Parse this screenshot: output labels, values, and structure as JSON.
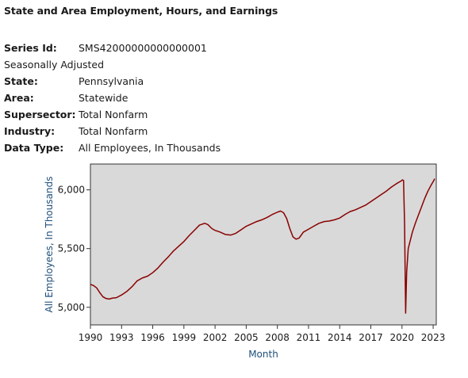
{
  "page": {
    "title": "State and Area Employment, Hours, and Earnings"
  },
  "meta": {
    "series_id_label": "Series Id:",
    "series_id_value": "SMS42000000000000001",
    "seasonal": "Seasonally Adjusted",
    "state_label": "State:",
    "state_value": "Pennsylvania",
    "area_label": "Area:",
    "area_value": "Statewide",
    "supersector_label": "Supersector:",
    "supersector_value": "Total Nonfarm",
    "industry_label": "Industry:",
    "industry_value": "Total Nonfarm",
    "datatype_label": "Data Type:",
    "datatype_value": "All Employees, In Thousands"
  },
  "chart_data": {
    "type": "line",
    "xlabel": "Month",
    "ylabel": "All Employees, In Thousands",
    "xlim": [
      1990,
      2023.3
    ],
    "ylim": [
      4850,
      6220
    ],
    "x_ticks": [
      1990,
      1993,
      1996,
      1999,
      2002,
      2005,
      2008,
      2011,
      2014,
      2017,
      2020,
      2023
    ],
    "x_tick_labels": [
      "1990",
      "1993",
      "1996",
      "1999",
      "2002",
      "2005",
      "2008",
      "2011",
      "2014",
      "2017",
      "2020",
      "2023"
    ],
    "y_ticks": [
      5000,
      5500,
      6000
    ],
    "y_tick_labels": [
      "5,000",
      "5,500",
      "6,000"
    ],
    "grid": false,
    "background": "#d9d9d9",
    "line_color": "#8b0000",
    "series": [
      {
        "x": [
          1990.0,
          1990.3,
          1990.6,
          1990.9,
          1991.2,
          1991.5,
          1991.8,
          1992.1,
          1992.5,
          1993.0,
          1993.5,
          1994.0,
          1994.5,
          1995.0,
          1995.5,
          1996.0,
          1996.5,
          1997.0,
          1997.5,
          1998.0,
          1998.5,
          1999.0,
          1999.5,
          2000.0,
          2000.5,
          2001.0,
          2001.3,
          2001.7,
          2002.0,
          2002.5,
          2003.0,
          2003.5,
          2004.0,
          2004.5,
          2005.0,
          2005.5,
          2006.0,
          2006.5,
          2007.0,
          2007.5,
          2008.0,
          2008.3,
          2008.6,
          2008.9,
          2009.2,
          2009.5,
          2009.8,
          2010.1,
          2010.5,
          2011.0,
          2011.5,
          2012.0,
          2012.5,
          2013.0,
          2013.5,
          2014.0,
          2014.5,
          2015.0,
          2015.5,
          2016.0,
          2016.5,
          2017.0,
          2017.5,
          2018.0,
          2018.5,
          2019.0,
          2019.5,
          2019.9,
          2020.05,
          2020.15,
          2020.25,
          2020.35,
          2020.45,
          2020.6,
          2020.8,
          2021.0,
          2021.3,
          2021.6,
          2021.9,
          2022.2,
          2022.5,
          2022.8,
          2023.0,
          2023.15
        ],
        "y": [
          5195,
          5185,
          5165,
          5125,
          5090,
          5075,
          5070,
          5078,
          5082,
          5105,
          5135,
          5175,
          5225,
          5250,
          5265,
          5295,
          5335,
          5385,
          5430,
          5480,
          5520,
          5560,
          5610,
          5655,
          5700,
          5715,
          5705,
          5670,
          5655,
          5640,
          5620,
          5615,
          5630,
          5660,
          5690,
          5710,
          5730,
          5745,
          5765,
          5790,
          5810,
          5820,
          5805,
          5755,
          5670,
          5600,
          5580,
          5590,
          5640,
          5665,
          5690,
          5715,
          5730,
          5735,
          5745,
          5760,
          5790,
          5815,
          5830,
          5850,
          5870,
          5900,
          5930,
          5960,
          5990,
          6025,
          6055,
          6075,
          6085,
          6080,
          5700,
          4950,
          5300,
          5500,
          5570,
          5640,
          5720,
          5790,
          5860,
          5930,
          5990,
          6040,
          6070,
          6095
        ]
      }
    ]
  }
}
